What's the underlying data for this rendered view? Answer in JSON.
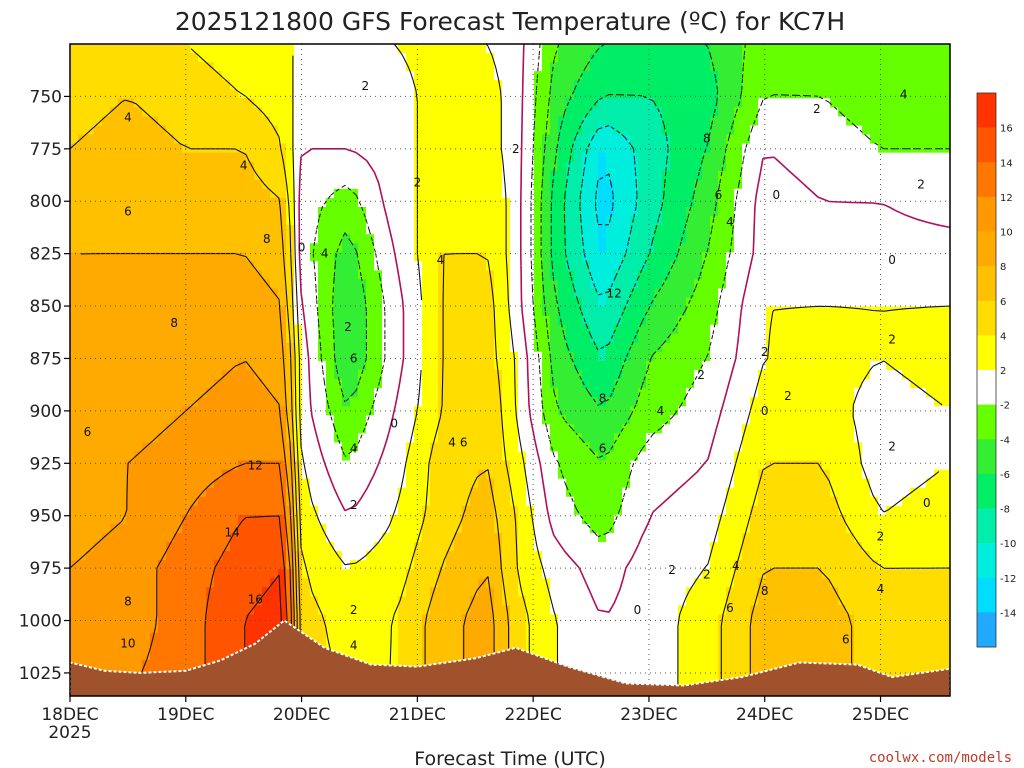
{
  "chart_data": {
    "type": "heatmap",
    "title": "2025121800 GFS Forecast Temperature (ºC) for KC7H",
    "xlabel": "Forecast Time (UTC)",
    "ylabel": "",
    "credit": "coolwx.com/models",
    "x_ticks": [
      {
        "label": "18DEC",
        "sublabel": "2025",
        "day": 0
      },
      {
        "label": "19DEC",
        "day": 1
      },
      {
        "label": "20DEC",
        "day": 2
      },
      {
        "label": "21DEC",
        "day": 3
      },
      {
        "label": "22DEC",
        "day": 4
      },
      {
        "label": "23DEC",
        "day": 5
      },
      {
        "label": "24DEC",
        "day": 6
      },
      {
        "label": "25DEC",
        "day": 7
      }
    ],
    "xlim_days": [
      0,
      7.6
    ],
    "y_ticks": [
      "750",
      "775",
      "800",
      "825",
      "850",
      "875",
      "900",
      "925",
      "950",
      "975",
      "1000",
      "1025"
    ],
    "ylim_hpa": [
      725,
      1036
    ],
    "y_scale": "linear",
    "colorbar": {
      "ticks": [
        "16",
        "14",
        "12",
        "10",
        "8",
        "6",
        "4",
        "2",
        "-2",
        "-4",
        "-6",
        "-8",
        "-10",
        "-12",
        "-14"
      ],
      "bins": [
        {
          "min": 16,
          "max": 18,
          "color": "#ff3300"
        },
        {
          "min": 14,
          "max": 16,
          "color": "#ff5500"
        },
        {
          "min": 12,
          "max": 14,
          "color": "#ff7700"
        },
        {
          "min": 10,
          "max": 12,
          "color": "#ff9900"
        },
        {
          "min": 8,
          "max": 10,
          "color": "#ffaa00"
        },
        {
          "min": 6,
          "max": 8,
          "color": "#ffc000"
        },
        {
          "min": 4,
          "max": 6,
          "color": "#ffdd00"
        },
        {
          "min": 2,
          "max": 4,
          "color": "#ffff00"
        },
        {
          "min": -2,
          "max": 2,
          "color": "#ffffff"
        },
        {
          "min": -4,
          "max": -2,
          "color": "#66ff00"
        },
        {
          "min": -6,
          "max": -4,
          "color": "#33ee33"
        },
        {
          "min": -8,
          "max": -6,
          "color": "#00ee66"
        },
        {
          "min": -10,
          "max": -8,
          "color": "#00eeaa"
        },
        {
          "min": -12,
          "max": -10,
          "color": "#00eedd"
        },
        {
          "min": -14,
          "max": -12,
          "color": "#00ddff"
        },
        {
          "min": -16,
          "max": -14,
          "color": "#22aaff"
        }
      ]
    },
    "surface_pressure": [
      [
        0.0,
        1020
      ],
      [
        0.3,
        1024
      ],
      [
        0.6,
        1025
      ],
      [
        1.0,
        1024
      ],
      [
        1.3,
        1019
      ],
      [
        1.6,
        1011
      ],
      [
        1.85,
        1000
      ],
      [
        2.2,
        1013
      ],
      [
        2.6,
        1021
      ],
      [
        3.0,
        1022
      ],
      [
        3.5,
        1018
      ],
      [
        3.85,
        1013
      ],
      [
        4.3,
        1022
      ],
      [
        4.8,
        1030
      ],
      [
        5.3,
        1031
      ],
      [
        5.8,
        1027
      ],
      [
        6.3,
        1020
      ],
      [
        6.8,
        1021
      ],
      [
        7.1,
        1027
      ],
      [
        7.6,
        1023
      ]
    ],
    "column_profiles": [
      {
        "day": 0.0,
        "temps": [
          4,
          5,
          6,
          7,
          8,
          8,
          8,
          8,
          9,
          9,
          10,
          11,
          11
        ]
      },
      {
        "day": 0.5,
        "temps": [
          4,
          6,
          7,
          8,
          8,
          9,
          9,
          9,
          10,
          10,
          11,
          11,
          12
        ]
      },
      {
        "day": 1.0,
        "temps": [
          4,
          5,
          6,
          7,
          8,
          9,
          9,
          10,
          11,
          12,
          13,
          13,
          13
        ]
      },
      {
        "day": 1.5,
        "temps": [
          3,
          4,
          6,
          7,
          8,
          9,
          10,
          11,
          12,
          14,
          15,
          16,
          16
        ]
      },
      {
        "day": 1.85,
        "temps": [
          2,
          3,
          4,
          6,
          7,
          8,
          9,
          10,
          12,
          14,
          16,
          17,
          17
        ]
      },
      {
        "day": 2.0,
        "temps": [
          2,
          1,
          0,
          -1,
          -1,
          0,
          1,
          1,
          2,
          3,
          4,
          5,
          5
        ]
      },
      {
        "day": 2.4,
        "temps": [
          1,
          0,
          0,
          -3,
          -5,
          -6,
          -6,
          -4,
          -2,
          0,
          2,
          3,
          4
        ]
      },
      {
        "day": 2.8,
        "temps": [
          2,
          1,
          1,
          1,
          0,
          -1,
          -1,
          0,
          1,
          2,
          3,
          4,
          4
        ]
      },
      {
        "day": 3.2,
        "temps": [
          3,
          3,
          3,
          3,
          4,
          4,
          4,
          4,
          5,
          5,
          6,
          7,
          7
        ]
      },
      {
        "day": 3.6,
        "temps": [
          2,
          3,
          3,
          4,
          4,
          5,
          5,
          6,
          6,
          7,
          8,
          9,
          9
        ]
      },
      {
        "day": 3.85,
        "temps": [
          1,
          1,
          1,
          1,
          1,
          1,
          2,
          2,
          3,
          4,
          4,
          5,
          5
        ]
      },
      {
        "day": 4.2,
        "temps": [
          -4,
          -5,
          -6,
          -7,
          -7,
          -6,
          -5,
          -4,
          -2,
          -1,
          1,
          2,
          2
        ]
      },
      {
        "day": 4.6,
        "temps": [
          -6,
          -8,
          -12,
          -13,
          -12,
          -10,
          -8,
          -6,
          -4,
          -3,
          -1,
          0,
          0
        ]
      },
      {
        "day": 5.0,
        "temps": [
          -7,
          -8,
          -9,
          -9,
          -8,
          -6,
          -4,
          -3,
          -1,
          0,
          1,
          1,
          1
        ]
      },
      {
        "day": 5.5,
        "temps": [
          -6,
          -7,
          -6,
          -5,
          -4,
          -3,
          -2,
          -1,
          0,
          1,
          2,
          3,
          3
        ]
      },
      {
        "day": 6.0,
        "temps": [
          -3,
          -2,
          0,
          1,
          1,
          2,
          2,
          3,
          4,
          5,
          6,
          7,
          7
        ]
      },
      {
        "day": 6.5,
        "temps": [
          -3,
          -2,
          -1,
          0,
          1,
          2,
          3,
          3,
          4,
          5,
          6,
          7,
          7
        ]
      },
      {
        "day": 7.0,
        "temps": [
          -4,
          -3,
          -2,
          0,
          1,
          2,
          2,
          1,
          1,
          2,
          4,
          5,
          5
        ]
      },
      {
        "day": 7.6,
        "temps": [
          -4,
          -3,
          -2,
          -1,
          1,
          2,
          3,
          2,
          2,
          3,
          4,
          5,
          5
        ]
      }
    ],
    "profile_levels_hpa": [
      725,
      750,
      775,
      800,
      825,
      850,
      875,
      900,
      925,
      950,
      975,
      1000,
      1036
    ],
    "contour_labels": [
      {
        "text": "2",
        "day": 2.55,
        "p": 745
      },
      {
        "text": "4",
        "day": 0.5,
        "p": 760
      },
      {
        "text": "4",
        "day": 1.5,
        "p": 783
      },
      {
        "text": "6",
        "day": 0.5,
        "p": 805
      },
      {
        "text": "8",
        "day": 1.7,
        "p": 818
      },
      {
        "text": "8",
        "day": 0.9,
        "p": 858
      },
      {
        "text": "6",
        "day": 0.15,
        "p": 910
      },
      {
        "text": "12",
        "day": 1.6,
        "p": 926
      },
      {
        "text": "14",
        "day": 1.4,
        "p": 958
      },
      {
        "text": "16",
        "day": 1.6,
        "p": 990
      },
      {
        "text": "8",
        "day": 0.5,
        "p": 991
      },
      {
        "text": "10",
        "day": 0.5,
        "p": 1011
      },
      {
        "text": "0",
        "day": 2.0,
        "p": 822
      },
      {
        "text": "4",
        "day": 2.2,
        "p": 825
      },
      {
        "text": "2",
        "day": 2.4,
        "p": 860
      },
      {
        "text": "6",
        "day": 2.45,
        "p": 875
      },
      {
        "text": "0",
        "day": 2.8,
        "p": 906
      },
      {
        "text": "4",
        "day": 2.45,
        "p": 918
      },
      {
        "text": "2",
        "day": 2.45,
        "p": 945
      },
      {
        "text": "2",
        "day": 2.45,
        "p": 995
      },
      {
        "text": "4",
        "day": 2.45,
        "p": 1012
      },
      {
        "text": "2",
        "day": 3.0,
        "p": 791
      },
      {
        "text": "4",
        "day": 3.2,
        "p": 828
      },
      {
        "text": "2",
        "day": 3.85,
        "p": 775
      },
      {
        "text": "4",
        "day": 3.3,
        "p": 915
      },
      {
        "text": "6",
        "day": 3.4,
        "p": 915
      },
      {
        "text": "12",
        "day": 4.7,
        "p": 844
      },
      {
        "text": "8",
        "day": 4.6,
        "p": 894
      },
      {
        "text": "6",
        "day": 4.6,
        "p": 918
      },
      {
        "text": "4",
        "day": 5.1,
        "p": 900
      },
      {
        "text": "8",
        "day": 5.5,
        "p": 770
      },
      {
        "text": "6",
        "day": 5.6,
        "p": 797
      },
      {
        "text": "4",
        "day": 5.7,
        "p": 810
      },
      {
        "text": "2",
        "day": 5.45,
        "p": 883
      },
      {
        "text": "2",
        "day": 5.2,
        "p": 976
      },
      {
        "text": "0",
        "day": 4.9,
        "p": 995
      },
      {
        "text": "2",
        "day": 5.5,
        "p": 978
      },
      {
        "text": "4",
        "day": 5.75,
        "p": 974
      },
      {
        "text": "6",
        "day": 5.7,
        "p": 994
      },
      {
        "text": "8",
        "day": 6.0,
        "p": 986
      },
      {
        "text": "0",
        "day": 6.1,
        "p": 797
      },
      {
        "text": "0",
        "day": 6.0,
        "p": 900
      },
      {
        "text": "2",
        "day": 6.2,
        "p": 893
      },
      {
        "text": "2",
        "day": 6.0,
        "p": 872
      },
      {
        "text": "2",
        "day": 6.45,
        "p": 756
      },
      {
        "text": "4",
        "day": 7.2,
        "p": 749
      },
      {
        "text": "2",
        "day": 7.35,
        "p": 792
      },
      {
        "text": "0",
        "day": 7.1,
        "p": 828
      },
      {
        "text": "2",
        "day": 7.1,
        "p": 866
      },
      {
        "text": "2",
        "day": 7.1,
        "p": 917
      },
      {
        "text": "0",
        "day": 7.4,
        "p": 944
      },
      {
        "text": "2",
        "day": 7.0,
        "p": 960
      },
      {
        "text": "4",
        "day": 7.0,
        "p": 985
      },
      {
        "text": "6",
        "day": 6.7,
        "p": 1009
      }
    ],
    "grid": true,
    "legend_placement": "right"
  }
}
